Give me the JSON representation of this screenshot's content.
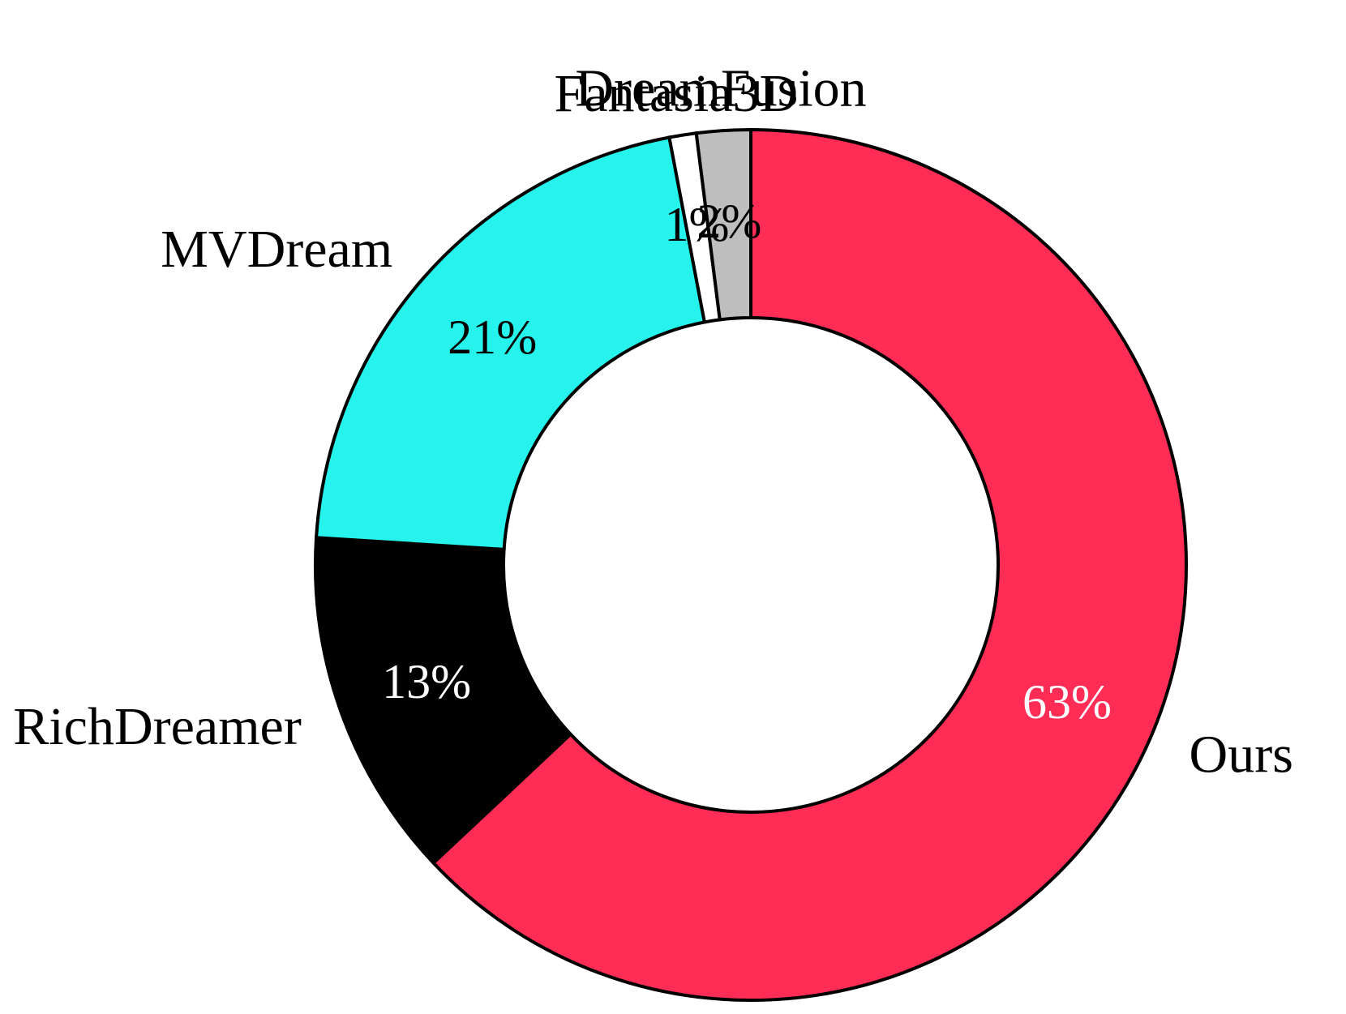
{
  "chart_data": {
    "type": "pie",
    "variant": "donut",
    "title": "",
    "legend": "none",
    "start": "12 o'clock",
    "direction": "clockwise",
    "slices": [
      {
        "label": "Ours",
        "value": 63,
        "value_label": "63%",
        "color": "#FF2D55",
        "text_color": "#FFFFFF"
      },
      {
        "label": "RichDreamer",
        "value": 13,
        "value_label": "13%",
        "color": "#000000",
        "text_color": "#FFFFFF"
      },
      {
        "label": "MVDream",
        "value": 21,
        "value_label": "21%",
        "color": "#26F4EC",
        "text_color": "#000000"
      },
      {
        "label": "Fantasia3D",
        "value": 1,
        "value_label": "1%",
        "color": "#FFFFFF",
        "text_color": "#000000"
      },
      {
        "label": "DreamFusion",
        "value": 2,
        "value_label": "2%",
        "color": "#BEBEBE",
        "text_color": "#000000"
      }
    ],
    "edge_color": "#000000"
  }
}
